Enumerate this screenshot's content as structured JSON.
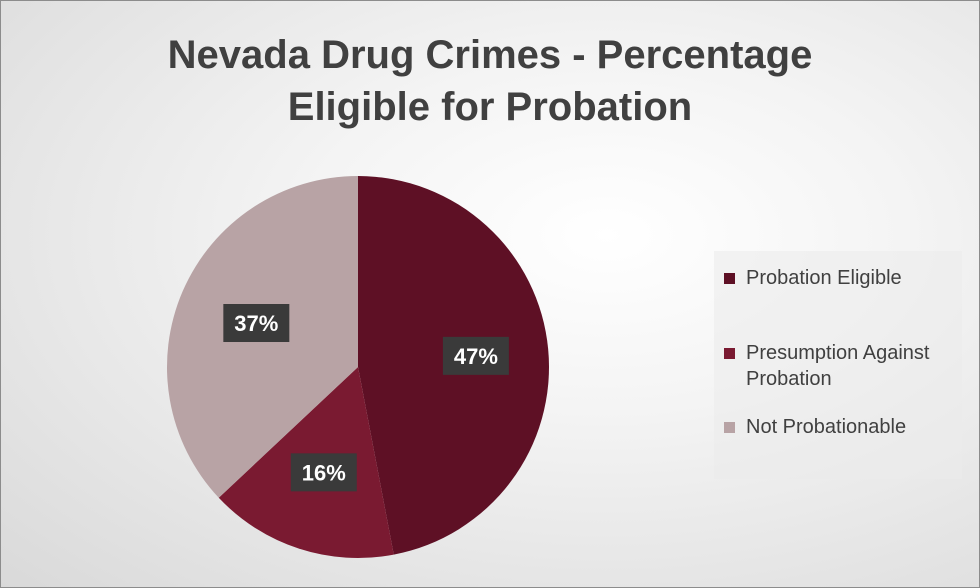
{
  "chart_data": {
    "type": "pie",
    "title": [
      "Nevada Drug Crimes - Percentage",
      "Eligible for Probation"
    ],
    "categories": [
      "Probation Eligible",
      "Presumption Against Probation",
      "Not Probationable"
    ],
    "values": [
      47,
      16,
      37
    ],
    "data_labels": [
      "47%",
      "16%",
      "37%"
    ],
    "colors": [
      "#5e1025",
      "#7a1a31",
      "#b8a3a5"
    ],
    "legend_position": "right"
  }
}
